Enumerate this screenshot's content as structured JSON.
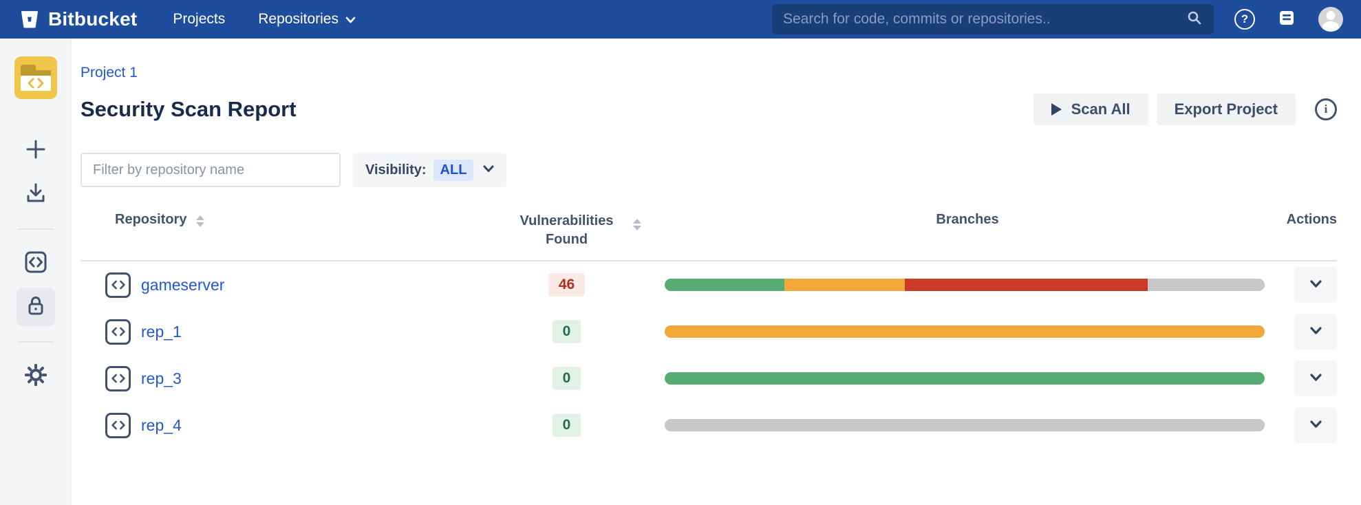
{
  "navbar": {
    "brand": "Bitbucket",
    "items": [
      {
        "label": "Projects"
      },
      {
        "label": "Repositories"
      }
    ],
    "search_placeholder": "Search for code, commits or repositories..",
    "colors": {
      "bg": "#1E4D9E",
      "search_bg": "#1A3E78"
    }
  },
  "sidebar": {
    "icons": [
      "project-folder",
      "plus",
      "download",
      "code",
      "lock",
      "gear"
    ],
    "active_item": "lock"
  },
  "page": {
    "breadcrumb": "Project 1",
    "title": "Security Scan Report",
    "actions": {
      "scan_all": "Scan All",
      "export_project": "Export Project"
    }
  },
  "filters": {
    "repo_filter_placeholder": "Filter by repository name",
    "visibility_label": "Visibility:",
    "visibility_value": "ALL"
  },
  "table": {
    "columns": [
      {
        "label": "Repository",
        "sortable": true
      },
      {
        "label": "Vulnerabilities Found",
        "sortable": true
      },
      {
        "label": "Branches",
        "sortable": false
      },
      {
        "label": "Actions",
        "sortable": false
      }
    ],
    "rows": [
      {
        "name": "gameserver",
        "vulnerabilities": "46",
        "badge_color": "red",
        "branches": [
          {
            "status": "passing",
            "color": "#57AC74",
            "pct": 20
          },
          {
            "status": "warning",
            "color": "#F2A73B",
            "pct": 20
          },
          {
            "status": "failing",
            "color": "#CA3A28",
            "pct": 40.5
          },
          {
            "status": "not-scanned",
            "color": "#C8C8C8",
            "pct": 19.5
          }
        ]
      },
      {
        "name": "rep_1",
        "vulnerabilities": "0",
        "badge_color": "green",
        "branches": [
          {
            "status": "warning",
            "color": "#F2A73B",
            "pct": 100
          }
        ]
      },
      {
        "name": "rep_3",
        "vulnerabilities": "0",
        "badge_color": "green",
        "branches": [
          {
            "status": "passing",
            "color": "#57AC74",
            "pct": 100
          }
        ]
      },
      {
        "name": "rep_4",
        "vulnerabilities": "0",
        "badge_color": "green",
        "branches": [
          {
            "status": "not-scanned",
            "color": "#C8C8C8",
            "pct": 100
          }
        ]
      }
    ]
  },
  "status_colors": {
    "passing": "#57AC74",
    "warning": "#F2A73B",
    "failing": "#CA3A28",
    "not_scanned": "#C8C8C8"
  }
}
